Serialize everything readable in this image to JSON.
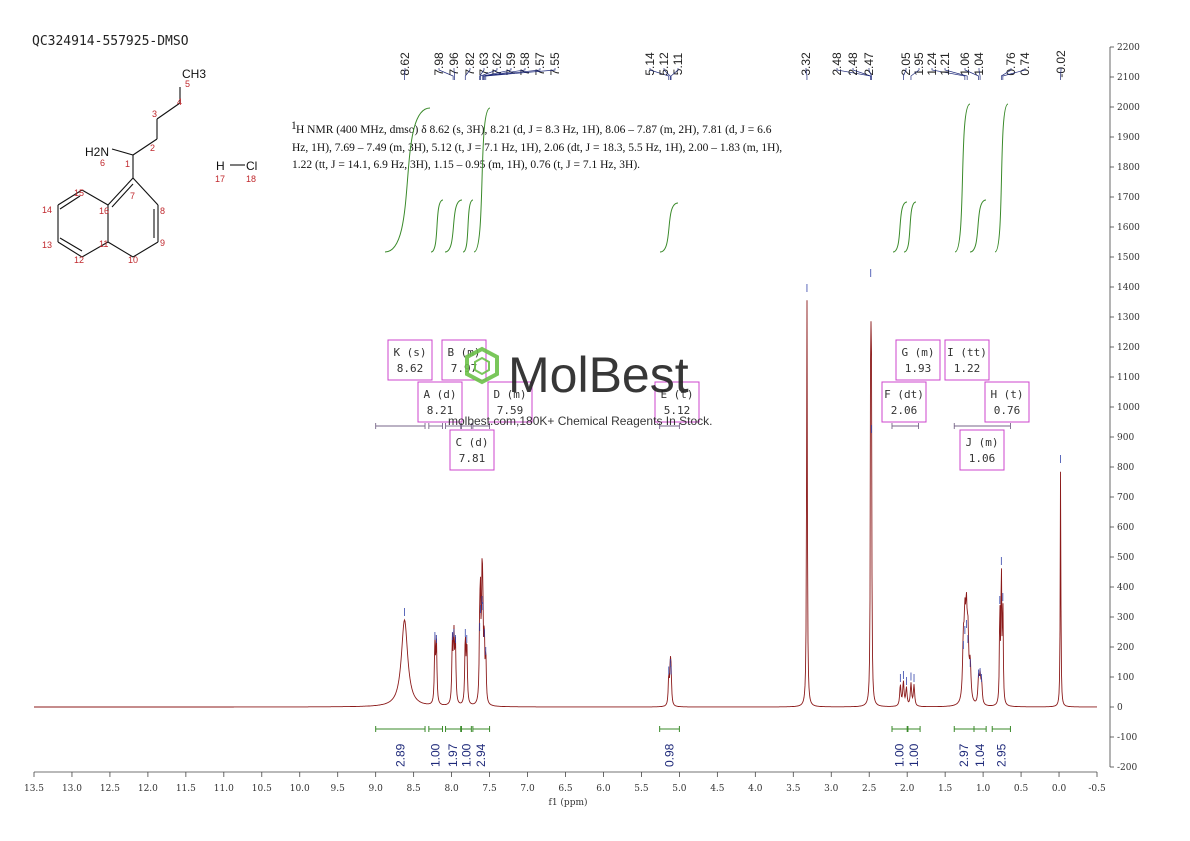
{
  "sample_id": "QC324914-557925-DMSO",
  "description_lines": [
    "H NMR (400 MHz, dmso) δ 8.62 (s, 3H), 8.21 (d, J = 8.3 Hz, 1H), 8.06 – 7.87 (m, 2H), 7.81 (d, J = 6.6",
    "Hz, 1H), 7.69 – 7.49 (m, 3H), 5.12 (t, J = 7.1 Hz, 1H), 2.06 (dt, J = 18.3, 5.5 Hz, 1H), 2.00 – 1.83 (m, 1H),",
    "1.22 (tt, J = 14.1, 6.9 Hz, 3H), 1.15 – 0.95 (m, 1H), 0.76 (t, J = 7.1 Hz, 3H)."
  ],
  "description_superscript": "1",
  "watermark": {
    "brand": "MolBest",
    "tagline": "molbest.com,180K+ Chemical Reagents In Stock."
  },
  "structure": {
    "atoms": [
      {
        "label": "CH3",
        "num": "5"
      },
      {
        "label": "H2N",
        "num": "6"
      },
      {
        "label": "H",
        "num": "17"
      },
      {
        "label": "Cl",
        "num": "18"
      }
    ],
    "numbers": [
      "1",
      "2",
      "3",
      "4",
      "7",
      "8",
      "9",
      "10",
      "11",
      "12",
      "13",
      "14",
      "15",
      "16"
    ]
  },
  "colors": {
    "spectrum": "#8b1a1a",
    "integral": "#3a8a2a",
    "peak_label": "#1f2a7a",
    "multiplet_box": "#cc44cc",
    "atom_number": "#c0282d",
    "watermark_hex": "#6cc24a"
  },
  "chart_data": {
    "type": "line",
    "xlabel": "f1 (ppm)",
    "ylabel": "",
    "x_reversed": true,
    "xlim": [
      13.5,
      -0.5
    ],
    "ylim": [
      -200,
      2200
    ],
    "xticks": [
      "13.5",
      "13.0",
      "12.5",
      "12.0",
      "11.5",
      "11.0",
      "10.5",
      "10.0",
      "9.5",
      "9.0",
      "8.5",
      "8.0",
      "7.5",
      "7.0",
      "6.5",
      "6.0",
      "5.5",
      "5.0",
      "4.5",
      "4.0",
      "3.5",
      "3.0",
      "2.5",
      "2.0",
      "1.5",
      "1.0",
      "0.5",
      "0.0",
      "-0.5"
    ],
    "yticks": [
      "-200",
      "-100",
      "0",
      "100",
      "200",
      "300",
      "400",
      "500",
      "600",
      "700",
      "800",
      "900",
      "1000",
      "1100",
      "1200",
      "1300",
      "1400",
      "1500",
      "1600",
      "1700",
      "1800",
      "1900",
      "2000",
      "2100",
      "2200"
    ],
    "peaks": [
      {
        "ppm": 8.62,
        "height": 290,
        "width": 0.05
      },
      {
        "ppm": 8.22,
        "height": 210,
        "width": 0.008
      },
      {
        "ppm": 8.2,
        "height": 200,
        "width": 0.008
      },
      {
        "ppm": 7.99,
        "height": 210,
        "width": 0.008
      },
      {
        "ppm": 7.97,
        "height": 220,
        "width": 0.008
      },
      {
        "ppm": 7.95,
        "height": 200,
        "width": 0.008
      },
      {
        "ppm": 7.82,
        "height": 220,
        "width": 0.008
      },
      {
        "ppm": 7.8,
        "height": 200,
        "width": 0.008
      },
      {
        "ppm": 7.63,
        "height": 240,
        "width": 0.007
      },
      {
        "ppm": 7.62,
        "height": 300,
        "width": 0.007
      },
      {
        "ppm": 7.6,
        "height": 330,
        "width": 0.007
      },
      {
        "ppm": 7.59,
        "height": 310,
        "width": 0.007
      },
      {
        "ppm": 7.57,
        "height": 220,
        "width": 0.007
      },
      {
        "ppm": 7.55,
        "height": 160,
        "width": 0.007
      },
      {
        "ppm": 5.14,
        "height": 95,
        "width": 0.008
      },
      {
        "ppm": 5.12,
        "height": 120,
        "width": 0.008
      },
      {
        "ppm": 5.11,
        "height": 95,
        "width": 0.008
      },
      {
        "ppm": 3.32,
        "height": 1370,
        "width": 0.006
      },
      {
        "ppm": 2.48,
        "height": 1420,
        "width": 0.005
      },
      {
        "ppm": 2.47,
        "height": 900,
        "width": 0.005
      },
      {
        "ppm": 2.09,
        "height": 70,
        "width": 0.01
      },
      {
        "ppm": 2.05,
        "height": 80,
        "width": 0.01
      },
      {
        "ppm": 2.01,
        "height": 60,
        "width": 0.01
      },
      {
        "ppm": 1.95,
        "height": 75,
        "width": 0.01
      },
      {
        "ppm": 1.91,
        "height": 70,
        "width": 0.01
      },
      {
        "ppm": 1.26,
        "height": 180,
        "width": 0.012
      },
      {
        "ppm": 1.24,
        "height": 230,
        "width": 0.012
      },
      {
        "ppm": 1.22,
        "height": 250,
        "width": 0.012
      },
      {
        "ppm": 1.2,
        "height": 200,
        "width": 0.012
      },
      {
        "ppm": 1.17,
        "height": 120,
        "width": 0.012
      },
      {
        "ppm": 1.06,
        "height": 85,
        "width": 0.01
      },
      {
        "ppm": 1.04,
        "height": 90,
        "width": 0.01
      },
      {
        "ppm": 1.02,
        "height": 70,
        "width": 0.01
      },
      {
        "ppm": 0.78,
        "height": 330,
        "width": 0.006
      },
      {
        "ppm": 0.76,
        "height": 460,
        "width": 0.006
      },
      {
        "ppm": 0.74,
        "height": 340,
        "width": 0.006
      },
      {
        "ppm": -0.02,
        "height": 800,
        "width": 0.005
      }
    ],
    "peak_labels": [
      {
        "ppm": 8.62,
        "text": "8.62"
      },
      {
        "ppm": 7.98,
        "text": "7.98"
      },
      {
        "ppm": 7.96,
        "text": "7.96"
      },
      {
        "ppm": 7.82,
        "text": "7.82"
      },
      {
        "ppm": 7.63,
        "text": "7.63"
      },
      {
        "ppm": 7.62,
        "text": "7.62"
      },
      {
        "ppm": 7.59,
        "text": "7.59"
      },
      {
        "ppm": 7.58,
        "text": "7.58"
      },
      {
        "ppm": 7.57,
        "text": "7.57"
      },
      {
        "ppm": 7.55,
        "text": "7.55"
      },
      {
        "ppm": 5.14,
        "text": "5.14"
      },
      {
        "ppm": 5.12,
        "text": "5.12"
      },
      {
        "ppm": 5.11,
        "text": "5.11"
      },
      {
        "ppm": 3.32,
        "text": "3.32"
      },
      {
        "ppm": 2.48,
        "text": "2.48"
      },
      {
        "ppm": 2.48,
        "text": "2.48"
      },
      {
        "ppm": 2.47,
        "text": "2.47"
      },
      {
        "ppm": 2.05,
        "text": "2.05"
      },
      {
        "ppm": 1.95,
        "text": "1.95"
      },
      {
        "ppm": 1.24,
        "text": "1.24"
      },
      {
        "ppm": 1.21,
        "text": "1.21"
      },
      {
        "ppm": 1.06,
        "text": "1.06"
      },
      {
        "ppm": 1.04,
        "text": "1.04"
      },
      {
        "ppm": 0.76,
        "text": "0.76"
      },
      {
        "ppm": 0.74,
        "text": "0.74"
      },
      {
        "ppm": -0.02,
        "text": "-0.02"
      }
    ],
    "integrals": [
      {
        "from": 9.0,
        "to": 8.35,
        "value": "2.89"
      },
      {
        "from": 8.3,
        "to": 8.12,
        "value": "1.00"
      },
      {
        "from": 8.08,
        "to": 7.88,
        "value": "1.97"
      },
      {
        "from": 7.87,
        "to": 7.74,
        "value": "1.00"
      },
      {
        "from": 7.72,
        "to": 7.5,
        "value": "2.94"
      },
      {
        "from": 5.26,
        "to": 5.0,
        "value": "0.98"
      },
      {
        "from": 2.2,
        "to": 2.0,
        "value": "1.00"
      },
      {
        "from": 1.99,
        "to": 1.83,
        "value": "1.00"
      },
      {
        "from": 1.38,
        "to": 1.12,
        "value": "2.97"
      },
      {
        "from": 1.12,
        "to": 0.96,
        "value": "1.04"
      },
      {
        "from": 0.88,
        "to": 0.64,
        "value": "2.95"
      }
    ],
    "multiplets": [
      {
        "name": "K (s)",
        "shift": "8.62"
      },
      {
        "name": "B (m)",
        "shift": "7.97"
      },
      {
        "name": "A (d)",
        "shift": "8.21"
      },
      {
        "name": "D (m)",
        "shift": "7.59"
      },
      {
        "name": "C (d)",
        "shift": "7.81"
      },
      {
        "name": "E (t)",
        "shift": "5.12"
      },
      {
        "name": "G (m)",
        "shift": "1.93"
      },
      {
        "name": "F (dt)",
        "shift": "2.06"
      },
      {
        "name": "I (tt)",
        "shift": "1.22"
      },
      {
        "name": "H (t)",
        "shift": "0.76"
      },
      {
        "name": "J (m)",
        "shift": "1.06"
      }
    ],
    "multiplet_ranges": [
      {
        "from": 9.0,
        "to": 8.35
      },
      {
        "from": 8.3,
        "to": 8.12
      },
      {
        "from": 8.08,
        "to": 7.88
      },
      {
        "from": 7.87,
        "to": 7.74
      },
      {
        "from": 7.72,
        "to": 7.5
      },
      {
        "from": 5.26,
        "to": 5.0
      },
      {
        "from": 2.2,
        "to": 1.85
      },
      {
        "from": 1.38,
        "to": 0.64
      }
    ]
  }
}
